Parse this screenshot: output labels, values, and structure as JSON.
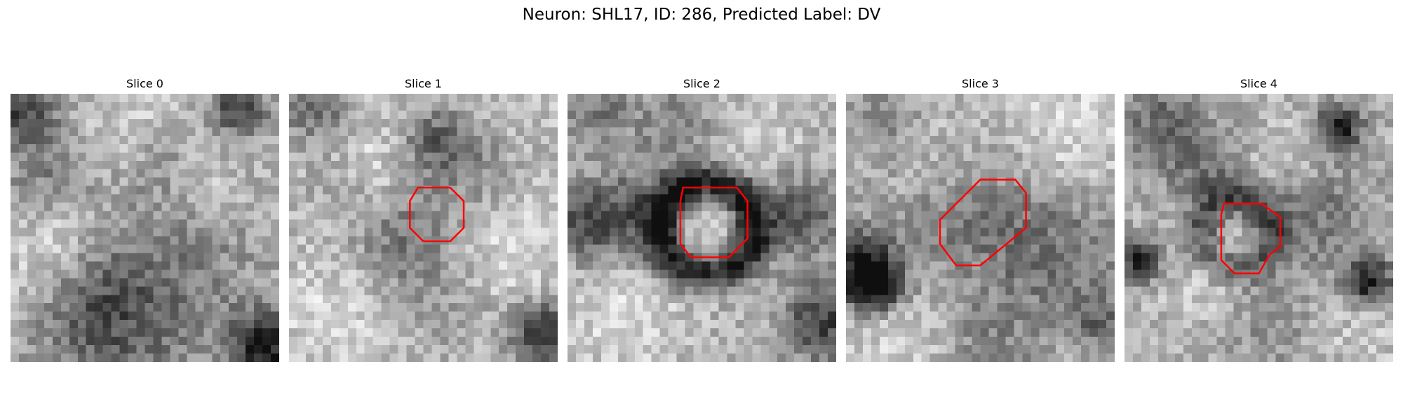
{
  "figure": {
    "title": "Neuron: SHL17, ID: 286, Predicted Label: DV",
    "roi_color": "#ff0000"
  },
  "panels": [
    {
      "title": "Slice 0",
      "pattern": {
        "base": 175,
        "dark_spots": [
          [
            0.04,
            0.05,
            0.09,
            110
          ],
          [
            0.85,
            0.06,
            0.07,
            110
          ],
          [
            0.15,
            0.3,
            0.12,
            45
          ],
          [
            0.65,
            0.6,
            0.18,
            40
          ],
          [
            0.4,
            0.9,
            0.2,
            70
          ],
          [
            0.95,
            0.95,
            0.1,
            150
          ],
          [
            0.55,
            0.25,
            0.1,
            30
          ],
          [
            0.3,
            0.75,
            0.14,
            40
          ]
        ],
        "light_spots": [
          [
            0.1,
            0.65,
            0.12,
            40
          ],
          [
            0.45,
            0.12,
            0.14,
            35
          ],
          [
            0.75,
            0.35,
            0.1,
            30
          ],
          [
            0.2,
            0.5,
            0.1,
            30
          ]
        ]
      },
      "roi": null
    },
    {
      "title": "Slice 1",
      "pattern": {
        "base": 190,
        "dark_spots": [
          [
            0.55,
            0.18,
            0.1,
            90
          ],
          [
            0.45,
            0.55,
            0.13,
            70
          ],
          [
            0.1,
            0.05,
            0.1,
            80
          ],
          [
            0.95,
            0.9,
            0.09,
            140
          ],
          [
            0.7,
            0.3,
            0.12,
            35
          ],
          [
            0.2,
            0.35,
            0.12,
            30
          ],
          [
            0.6,
            0.8,
            0.14,
            30
          ]
        ],
        "light_spots": [
          [
            0.3,
            0.25,
            0.12,
            40
          ],
          [
            0.8,
            0.6,
            0.15,
            30
          ],
          [
            0.15,
            0.8,
            0.12,
            30
          ]
        ]
      },
      "roi": [
        [
          0.48,
          0.35
        ],
        [
          0.6,
          0.35
        ],
        [
          0.65,
          0.4
        ],
        [
          0.65,
          0.5
        ],
        [
          0.6,
          0.55
        ],
        [
          0.5,
          0.55
        ],
        [
          0.45,
          0.5
        ],
        [
          0.45,
          0.4
        ]
      ]
    },
    {
      "title": "Slice 2",
      "pattern": {
        "base": 180,
        "ring": [
          0.52,
          0.5,
          0.17,
          0.05,
          150
        ],
        "dark_spots": [
          [
            0.05,
            0.48,
            0.1,
            90
          ],
          [
            0.25,
            0.45,
            0.12,
            80
          ],
          [
            0.85,
            0.45,
            0.12,
            90
          ],
          [
            0.95,
            0.85,
            0.1,
            120
          ],
          [
            0.1,
            0.05,
            0.1,
            60
          ],
          [
            0.4,
            0.12,
            0.1,
            50
          ]
        ],
        "light_spots": [
          [
            0.5,
            0.5,
            0.1,
            30
          ],
          [
            0.2,
            0.85,
            0.15,
            40
          ],
          [
            0.75,
            0.2,
            0.12,
            30
          ]
        ]
      },
      "roi": [
        [
          0.43,
          0.35
        ],
        [
          0.63,
          0.35
        ],
        [
          0.67,
          0.4
        ],
        [
          0.67,
          0.54
        ],
        [
          0.6,
          0.61
        ],
        [
          0.46,
          0.61
        ],
        [
          0.42,
          0.56
        ],
        [
          0.42,
          0.4
        ]
      ]
    },
    {
      "title": "Slice 3",
      "pattern": {
        "base": 185,
        "dark_spots": [
          [
            0.05,
            0.65,
            0.1,
            150
          ],
          [
            0.12,
            0.72,
            0.06,
            140
          ],
          [
            0.45,
            0.45,
            0.22,
            55
          ],
          [
            0.8,
            0.6,
            0.18,
            60
          ],
          [
            0.15,
            0.1,
            0.12,
            50
          ],
          [
            0.55,
            0.95,
            0.14,
            45
          ],
          [
            0.95,
            0.85,
            0.08,
            70
          ]
        ],
        "light_spots": [
          [
            0.3,
            0.2,
            0.14,
            35
          ],
          [
            0.8,
            0.15,
            0.15,
            40
          ],
          [
            0.2,
            0.9,
            0.14,
            30
          ]
        ]
      },
      "roi": [
        [
          0.5,
          0.32
        ],
        [
          0.63,
          0.32
        ],
        [
          0.67,
          0.37
        ],
        [
          0.67,
          0.5
        ],
        [
          0.5,
          0.64
        ],
        [
          0.41,
          0.64
        ],
        [
          0.35,
          0.56
        ],
        [
          0.35,
          0.47
        ]
      ]
    },
    {
      "title": "Slice 4",
      "pattern": {
        "base": 175,
        "ring": [
          0.42,
          0.52,
          0.13,
          0.05,
          90
        ],
        "dark_spots": [
          [
            0.8,
            0.13,
            0.06,
            150
          ],
          [
            0.05,
            0.62,
            0.06,
            140
          ],
          [
            0.91,
            0.7,
            0.06,
            150
          ],
          [
            0.15,
            0.12,
            0.12,
            70
          ],
          [
            0.7,
            0.45,
            0.14,
            60
          ],
          [
            0.5,
            0.85,
            0.12,
            40
          ],
          [
            0.3,
            0.3,
            0.1,
            50
          ]
        ],
        "light_spots": [
          [
            0.35,
            0.7,
            0.14,
            40
          ],
          [
            0.6,
            0.25,
            0.12,
            30
          ],
          [
            0.9,
            0.9,
            0.1,
            30
          ]
        ]
      },
      "roi": [
        [
          0.37,
          0.41
        ],
        [
          0.51,
          0.41
        ],
        [
          0.58,
          0.46
        ],
        [
          0.58,
          0.57
        ],
        [
          0.54,
          0.6
        ],
        [
          0.5,
          0.67
        ],
        [
          0.41,
          0.67
        ],
        [
          0.36,
          0.62
        ],
        [
          0.36,
          0.45
        ]
      ]
    }
  ]
}
